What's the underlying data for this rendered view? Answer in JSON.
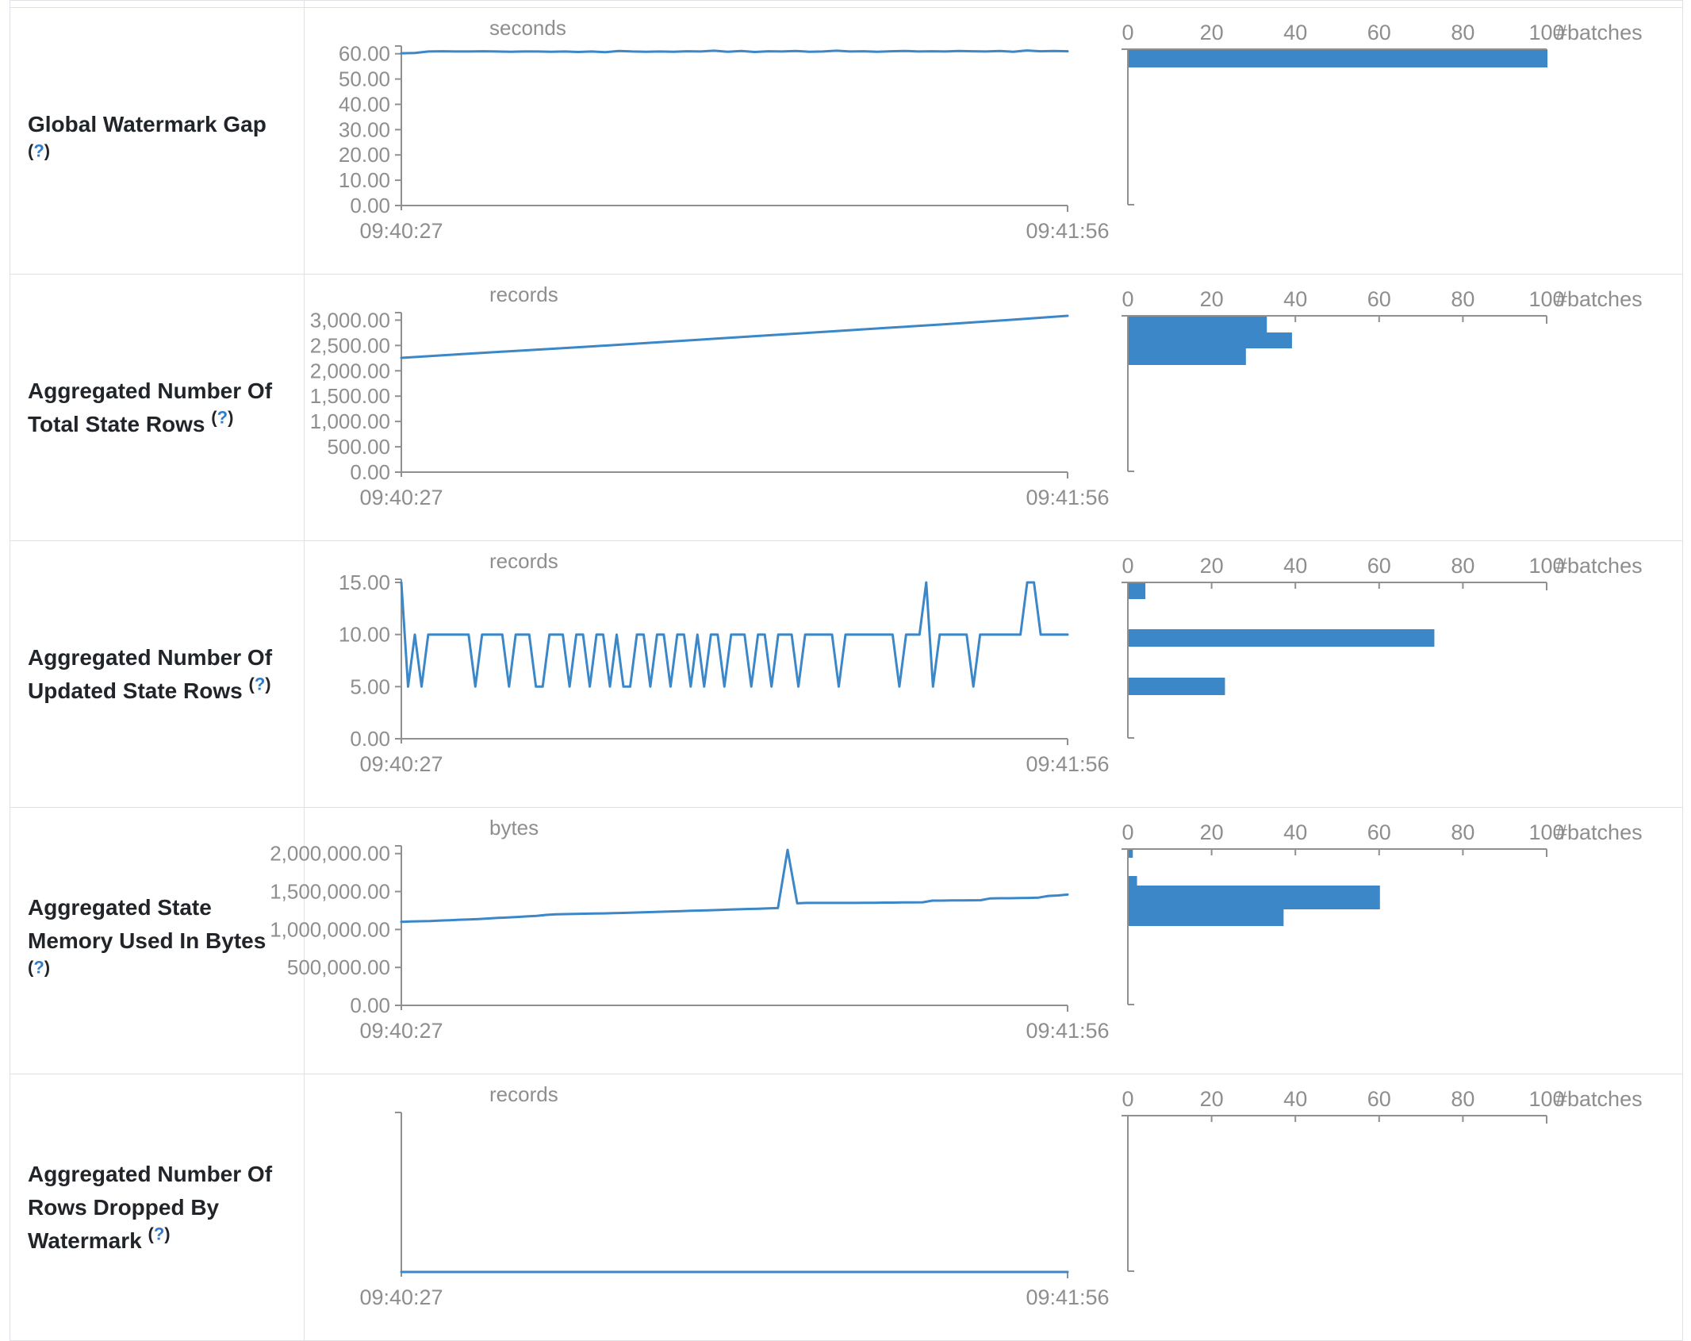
{
  "colors": {
    "chart_blue": "#3b87c8",
    "axis_gray": "#909090",
    "tick_text_gray": "#8e8e8e",
    "label_dark": "#212529",
    "help_blue": "#2e7bcb",
    "border_gray": "#dee2e6"
  },
  "rows": [
    {
      "label": "Global Watermark Gap",
      "help_open": "(",
      "help_q": "?",
      "help_close": ")"
    },
    {
      "label": "Aggregated Number Of Total State Rows",
      "help_open": "(",
      "help_q": "?",
      "help_close": ")"
    },
    {
      "label": "Aggregated Number Of Updated State Rows",
      "help_open": "(",
      "help_q": "?",
      "help_close": ")"
    },
    {
      "label": "Aggregated State Memory Used In Bytes",
      "help_open": "(",
      "help_q": "?",
      "help_close": ")"
    },
    {
      "label": "Aggregated Number Of Rows Dropped By Watermark",
      "help_open": "(",
      "help_q": "?",
      "help_close": ")"
    }
  ],
  "chart_data": [
    {
      "metric": "Global Watermark Gap",
      "timeline": {
        "type": "line",
        "unit": "seconds",
        "x_start": "09:40:27",
        "x_end": "09:41:56",
        "y_max": 61.8,
        "y_ticks": [
          60,
          50,
          40,
          30,
          20,
          10,
          0
        ],
        "values": [
          60.2,
          60.3,
          60.9,
          61.0,
          60.9,
          60.9,
          61.0,
          60.9,
          60.8,
          60.9,
          60.9,
          60.8,
          60.9,
          60.7,
          60.9,
          60.6,
          61.1,
          60.9,
          60.8,
          60.9,
          60.8,
          61.0,
          60.9,
          61.2,
          60.8,
          61.1,
          60.7,
          61.0,
          60.9,
          61.1,
          60.8,
          60.9,
          61.2,
          60.9,
          61.0,
          60.8,
          61.0,
          61.1,
          60.9,
          61.0,
          60.9,
          61.1,
          61.0,
          60.9,
          61.1,
          60.8,
          61.3,
          61.0,
          61.1,
          61.0
        ]
      },
      "histogram": {
        "type": "bar",
        "x_label": "#batches",
        "x_ticks": [
          0,
          20,
          40,
          60,
          80,
          100
        ],
        "x_max": 100,
        "bars": [
          {
            "count": 100,
            "y": 53,
            "h": 22
          }
        ]
      }
    },
    {
      "metric": "Aggregated Number Of Total State Rows",
      "timeline": {
        "type": "line",
        "unit": "records",
        "x_start": "09:40:27",
        "x_end": "09:41:56",
        "y_max": 3085,
        "y_ticks": [
          3000,
          2500,
          2000,
          1500,
          1000,
          500,
          0
        ],
        "values": [
          2255,
          2330,
          2400,
          2470,
          2545,
          2620,
          2695,
          2770,
          2845,
          2920,
          3000,
          3085
        ]
      },
      "histogram": {
        "type": "bar",
        "x_label": "#batches",
        "x_ticks": [
          0,
          20,
          40,
          60,
          80,
          100
        ],
        "x_max": 100,
        "bars": [
          {
            "count": 33,
            "y": 53,
            "h": 20
          },
          {
            "count": 39,
            "y": 73,
            "h": 20
          },
          {
            "count": 28,
            "y": 93,
            "h": 21
          }
        ]
      }
    },
    {
      "metric": "Aggregated Number Of Updated State Rows",
      "timeline": {
        "type": "line",
        "unit": "records",
        "x_start": "09:40:27",
        "x_end": "09:41:56",
        "y_max": 15,
        "y_ticks": [
          15,
          10,
          5,
          0
        ],
        "values": [
          15,
          5,
          10,
          5,
          10,
          10,
          10,
          10,
          10,
          10,
          10,
          5,
          10,
          10,
          10,
          10,
          5,
          10,
          10,
          10,
          5,
          5,
          10,
          10,
          10,
          5,
          10,
          10,
          5,
          10,
          10,
          5,
          10,
          5,
          5,
          10,
          10,
          5,
          10,
          10,
          5,
          10,
          10,
          5,
          10,
          5,
          10,
          10,
          5,
          10,
          10,
          10,
          5,
          10,
          10,
          5,
          10,
          10,
          10,
          5,
          10,
          10,
          10,
          10,
          10,
          5,
          10,
          10,
          10,
          10,
          10,
          10,
          10,
          10,
          5,
          10,
          10,
          10,
          15,
          5,
          10,
          10,
          10,
          10,
          10,
          5,
          10,
          10,
          10,
          10,
          10,
          10,
          10,
          15,
          15,
          10,
          10,
          10,
          10,
          10
        ]
      },
      "histogram": {
        "type": "bar",
        "x_label": "#batches",
        "x_ticks": [
          0,
          20,
          40,
          60,
          80,
          100
        ],
        "x_max": 100,
        "bars": [
          {
            "count": 4,
            "y": 53,
            "h": 20
          },
          {
            "count": 73,
            "y": 111,
            "h": 22
          },
          {
            "count": 23,
            "y": 172,
            "h": 22
          }
        ]
      }
    },
    {
      "metric": "Aggregated State Memory Used In Bytes",
      "timeline": {
        "type": "line",
        "unit": "bytes",
        "x_start": "09:40:27",
        "x_end": "09:41:56",
        "y_max": 2060000,
        "y_ticks": [
          2000000,
          1500000,
          1000000,
          500000,
          0
        ],
        "values": [
          1100000,
          1105000,
          1108000,
          1112000,
          1118000,
          1122000,
          1128000,
          1132000,
          1138000,
          1145000,
          1152000,
          1158000,
          1165000,
          1172000,
          1180000,
          1192000,
          1200000,
          1203000,
          1205000,
          1208000,
          1210000,
          1212000,
          1215000,
          1218000,
          1222000,
          1226000,
          1230000,
          1234000,
          1238000,
          1242000,
          1246000,
          1250000,
          1254000,
          1258000,
          1262000,
          1266000,
          1270000,
          1274000,
          1278000,
          1282000,
          2050000,
          1345000,
          1350000,
          1350000,
          1350000,
          1350000,
          1350000,
          1350000,
          1352000,
          1352000,
          1354000,
          1354000,
          1356000,
          1356000,
          1358000,
          1380000,
          1380000,
          1382000,
          1382000,
          1384000,
          1386000,
          1410000,
          1412000,
          1412000,
          1414000,
          1416000,
          1420000,
          1442000,
          1448000,
          1460000
        ]
      },
      "histogram": {
        "type": "bar",
        "x_label": "#batches",
        "x_ticks": [
          0,
          20,
          40,
          60,
          80,
          100
        ],
        "x_max": 100,
        "bars": [
          {
            "count": 1,
            "y": 53,
            "h": 10
          },
          {
            "count": 2,
            "y": 86,
            "h": 12
          },
          {
            "count": 60,
            "y": 98,
            "h": 30
          },
          {
            "count": 37,
            "y": 128,
            "h": 21
          }
        ]
      }
    },
    {
      "metric": "Aggregated Number Of Rows Dropped By Watermark",
      "timeline": {
        "type": "line",
        "unit": "records",
        "x_start": "09:40:27",
        "x_end": "09:41:56",
        "y_max": 1,
        "y_ticks": [],
        "values": [
          0,
          0,
          0,
          0,
          0,
          0,
          0,
          0,
          0,
          0
        ]
      },
      "histogram": {
        "type": "bar",
        "x_label": "#batches",
        "x_ticks": [
          0,
          20,
          40,
          60,
          80,
          100
        ],
        "x_max": 100,
        "bars": []
      }
    }
  ]
}
